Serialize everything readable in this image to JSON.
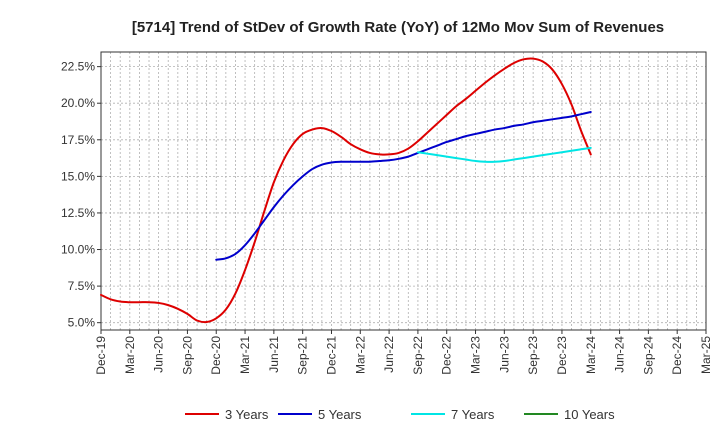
{
  "chart_data": {
    "type": "line",
    "title": "[5714]  Trend of StDev of Growth Rate (YoY) of 12Mo Mov Sum of Revenues",
    "xlabel": "",
    "ylabel": "",
    "ylim": [
      4.5,
      23.5
    ],
    "yticks": [
      5.0,
      7.5,
      10.0,
      12.5,
      15.0,
      17.5,
      20.0,
      22.5
    ],
    "ytick_labels": [
      "5.0%",
      "7.5%",
      "10.0%",
      "12.5%",
      "15.0%",
      "17.5%",
      "20.0%",
      "22.5%"
    ],
    "x_range": [
      0,
      63
    ],
    "xticks": [
      0,
      3,
      6,
      9,
      12,
      15,
      18,
      21,
      24,
      27,
      30,
      33,
      36,
      39,
      42,
      45,
      48,
      51,
      54,
      57,
      60,
      63
    ],
    "xtick_labels": [
      "Dec-19",
      "Mar-20",
      "Jun-20",
      "Sep-20",
      "Dec-20",
      "Mar-21",
      "Jun-21",
      "Sep-21",
      "Dec-21",
      "Mar-22",
      "Jun-22",
      "Sep-22",
      "Dec-22",
      "Mar-23",
      "Jun-23",
      "Sep-23",
      "Dec-23",
      "Mar-24",
      "Jun-24",
      "Sep-24",
      "Dec-24",
      "Mar-25"
    ],
    "grid": true,
    "legend_position": "bottom",
    "series": [
      {
        "name": "3 Years",
        "color": "#dd0000",
        "points": [
          [
            0,
            6.9
          ],
          [
            1,
            6.6
          ],
          [
            2,
            6.45
          ],
          [
            3,
            6.4
          ],
          [
            4,
            6.4
          ],
          [
            5,
            6.4
          ],
          [
            6,
            6.35
          ],
          [
            7,
            6.2
          ],
          [
            8,
            5.95
          ],
          [
            9,
            5.6
          ],
          [
            10,
            5.15
          ],
          [
            11,
            5.05
          ],
          [
            12,
            5.3
          ],
          [
            13,
            5.9
          ],
          [
            14,
            7.0
          ],
          [
            15,
            8.6
          ],
          [
            16,
            10.5
          ],
          [
            17,
            12.6
          ],
          [
            18,
            14.6
          ],
          [
            19,
            16.1
          ],
          [
            20,
            17.2
          ],
          [
            21,
            17.9
          ],
          [
            22,
            18.2
          ],
          [
            23,
            18.3
          ],
          [
            24,
            18.1
          ],
          [
            25,
            17.7
          ],
          [
            26,
            17.2
          ],
          [
            27,
            16.85
          ],
          [
            28,
            16.6
          ],
          [
            29,
            16.5
          ],
          [
            30,
            16.5
          ],
          [
            31,
            16.6
          ],
          [
            32,
            16.9
          ],
          [
            33,
            17.4
          ],
          [
            34,
            18.0
          ],
          [
            35,
            18.6
          ],
          [
            36,
            19.2
          ],
          [
            37,
            19.8
          ],
          [
            38,
            20.3
          ],
          [
            39,
            20.85
          ],
          [
            40,
            21.4
          ],
          [
            41,
            21.9
          ],
          [
            42,
            22.35
          ],
          [
            43,
            22.75
          ],
          [
            44,
            23.0
          ],
          [
            45,
            23.05
          ],
          [
            46,
            22.85
          ],
          [
            47,
            22.3
          ],
          [
            48,
            21.3
          ],
          [
            49,
            19.9
          ],
          [
            50,
            18.1
          ],
          [
            51,
            16.5
          ]
        ]
      },
      {
        "name": "5 Years",
        "color": "#0000cc",
        "points": [
          [
            12,
            9.3
          ],
          [
            13,
            9.4
          ],
          [
            14,
            9.7
          ],
          [
            15,
            10.3
          ],
          [
            16,
            11.1
          ],
          [
            17,
            12.0
          ],
          [
            18,
            12.9
          ],
          [
            19,
            13.7
          ],
          [
            20,
            14.4
          ],
          [
            21,
            15.0
          ],
          [
            22,
            15.5
          ],
          [
            23,
            15.8
          ],
          [
            24,
            15.95
          ],
          [
            25,
            16.0
          ],
          [
            26,
            16.0
          ],
          [
            27,
            16.0
          ],
          [
            28,
            16.0
          ],
          [
            29,
            16.05
          ],
          [
            30,
            16.1
          ],
          [
            31,
            16.2
          ],
          [
            32,
            16.35
          ],
          [
            33,
            16.6
          ],
          [
            34,
            16.85
          ],
          [
            35,
            17.1
          ],
          [
            36,
            17.35
          ],
          [
            37,
            17.55
          ],
          [
            38,
            17.75
          ],
          [
            39,
            17.9
          ],
          [
            40,
            18.05
          ],
          [
            41,
            18.2
          ],
          [
            42,
            18.3
          ],
          [
            43,
            18.45
          ],
          [
            44,
            18.55
          ],
          [
            45,
            18.7
          ],
          [
            46,
            18.8
          ],
          [
            47,
            18.9
          ],
          [
            48,
            19.0
          ],
          [
            49,
            19.1
          ],
          [
            50,
            19.25
          ],
          [
            51,
            19.4
          ]
        ]
      },
      {
        "name": "7 Years",
        "color": "#00e5e5",
        "points": [
          [
            33,
            16.65
          ],
          [
            34,
            16.55
          ],
          [
            35,
            16.45
          ],
          [
            36,
            16.35
          ],
          [
            37,
            16.25
          ],
          [
            38,
            16.15
          ],
          [
            39,
            16.05
          ],
          [
            40,
            16.0
          ],
          [
            41,
            16.0
          ],
          [
            42,
            16.05
          ],
          [
            43,
            16.15
          ],
          [
            44,
            16.25
          ],
          [
            45,
            16.35
          ],
          [
            46,
            16.45
          ],
          [
            47,
            16.55
          ],
          [
            48,
            16.65
          ],
          [
            49,
            16.75
          ],
          [
            50,
            16.85
          ],
          [
            51,
            16.95
          ]
        ]
      },
      {
        "name": "10 Years",
        "color": "#228822",
        "points": []
      }
    ]
  }
}
